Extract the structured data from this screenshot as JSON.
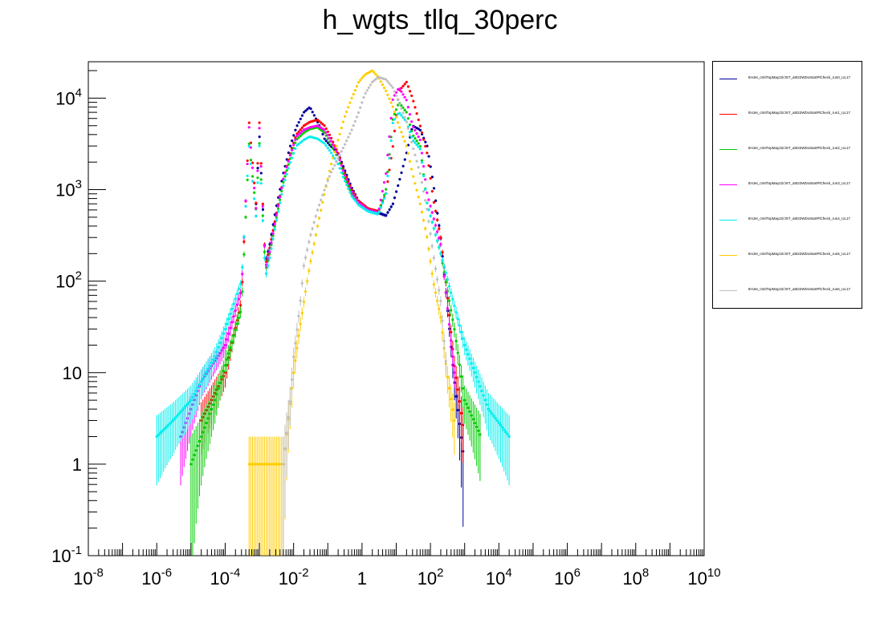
{
  "title": "h_wgts_tllq_30perc",
  "chart_data": {
    "type": "scatter",
    "title": "h_wgts_tllq_30perc",
    "xlabel": "",
    "ylabel": "",
    "xscale": "log",
    "yscale": "log",
    "xlim": [
      1e-08,
      10000000000.0
    ],
    "ylim": [
      0.1,
      25000
    ],
    "x_ticks": [
      "10^-8",
      "10^-6",
      "10^-4",
      "10^-2",
      "1",
      "10^2",
      "10^4",
      "10^6",
      "10^8",
      "10^10"
    ],
    "y_ticks": [
      "10^-1",
      "1",
      "10",
      "10^2",
      "10^3",
      "10^4"
    ],
    "grid": false,
    "legend_position": "right",
    "series": [
      {
        "name": "ttHJet_ctmlTopMay22/JST_at022WDxStartPlCheck_run0_UL17",
        "color": "#000099",
        "x": [
          0.0008,
          0.001,
          0.0015,
          0.002,
          0.003,
          0.005,
          0.008,
          0.012,
          0.02,
          0.03,
          0.04,
          0.06,
          0.08,
          0.12,
          0.2,
          0.3,
          0.5,
          0.8,
          1.5,
          3,
          5,
          8,
          12,
          20,
          30,
          50,
          80,
          120,
          200,
          300,
          500,
          1000
        ],
        "y": [
          700,
          4000,
          160,
          250,
          600,
          1500,
          3000,
          4800,
          7000,
          8000,
          6500,
          4800,
          3600,
          3000,
          2500,
          1700,
          1050,
          750,
          620,
          560,
          520,
          700,
          1200,
          2500,
          5000,
          4500,
          3000,
          1200,
          300,
          60,
          8,
          1
        ]
      },
      {
        "name": "ttHJet_ctmlTopMay22/JST_at022WDxStartPlCheck_run1_UL17",
        "color": "#ff0000",
        "x": [
          2e-05,
          0.0001,
          0.0003,
          0.0005,
          0.0008,
          0.001,
          0.0015,
          0.002,
          0.003,
          0.005,
          0.008,
          0.012,
          0.02,
          0.03,
          0.05,
          0.08,
          0.12,
          0.2,
          0.3,
          0.5,
          0.8,
          1.5,
          3,
          5,
          8,
          12,
          20,
          30,
          50,
          80,
          120,
          200,
          300,
          500,
          1000
        ],
        "y": [
          3,
          10,
          60,
          5500,
          700,
          5500,
          150,
          230,
          500,
          1300,
          2500,
          4000,
          5000,
          5500,
          5800,
          5000,
          3800,
          2500,
          1600,
          1000,
          750,
          620,
          580,
          900,
          3000,
          12000,
          15000,
          10000,
          5000,
          2500,
          800,
          300,
          80,
          12,
          2
        ]
      },
      {
        "name": "ttHJet_ctmlTopMay22/JST_at022WDxStartPlCheck_run2_UL17",
        "color": "#00cc00",
        "x": [
          1e-05,
          5e-05,
          0.0001,
          0.0003,
          0.0005,
          0.0008,
          0.001,
          0.0015,
          0.002,
          0.003,
          0.005,
          0.008,
          0.012,
          0.02,
          0.03,
          0.05,
          0.08,
          0.12,
          0.2,
          0.3,
          0.5,
          0.8,
          1.5,
          3,
          5,
          8,
          12,
          20,
          30,
          50,
          80,
          200,
          500,
          1000,
          3000
        ],
        "y": [
          1,
          5,
          12,
          50,
          3200,
          600,
          3200,
          130,
          200,
          450,
          1200,
          2200,
          3500,
          4200,
          4600,
          4800,
          4200,
          3200,
          2200,
          1400,
          900,
          700,
          600,
          540,
          1000,
          6000,
          9000,
          7000,
          4000,
          3000,
          700,
          200,
          30,
          5,
          2
        ]
      },
      {
        "name": "ttHJet_ctmlTopMay22/JST_at022WDxStartPlCheck_run3_UL17",
        "color": "#ff00ff",
        "x": [
          5e-06,
          2e-05,
          0.0001,
          0.0003,
          0.0005,
          0.0008,
          0.001,
          0.0015,
          0.002,
          0.003,
          0.005,
          0.008,
          0.012,
          0.02,
          0.03,
          0.05,
          0.08,
          0.12,
          0.2,
          0.3,
          0.5,
          0.8,
          1.5,
          3,
          5,
          8,
          12,
          20,
          30,
          50,
          80,
          200,
          500
        ],
        "y": [
          2,
          8,
          20,
          80,
          4800,
          600,
          4800,
          140,
          210,
          480,
          1300,
          2400,
          3800,
          4500,
          4800,
          5000,
          4500,
          3500,
          2400,
          1500,
          950,
          720,
          600,
          560,
          1500,
          10000,
          13000,
          9500,
          5000,
          3500,
          900,
          250,
          10
        ]
      },
      {
        "name": "ttHJet_ctmlTopMay22/JST_at022WDxStartPlCheck_run4_UL17",
        "color": "#00eeee",
        "x": [
          1e-06,
          3e-06,
          1e-05,
          5e-05,
          0.0001,
          0.0003,
          0.0005,
          0.0008,
          0.001,
          0.0015,
          0.002,
          0.003,
          0.005,
          0.008,
          0.012,
          0.02,
          0.03,
          0.05,
          0.08,
          0.12,
          0.2,
          0.3,
          0.5,
          0.8,
          1.5,
          3,
          5,
          8,
          12,
          20,
          30,
          50,
          80,
          200,
          1000,
          5000,
          20000
        ],
        "y": [
          2,
          3,
          5,
          15,
          30,
          100,
          3000,
          500,
          3000,
          110,
          180,
          420,
          1100,
          2000,
          3000,
          3500,
          3800,
          3600,
          3200,
          2600,
          1900,
          1300,
          850,
          680,
          580,
          540,
          900,
          5500,
          7000,
          5500,
          3500,
          2800,
          700,
          200,
          20,
          4,
          2
        ]
      },
      {
        "name": "ttHJet_ctmlTopMay22/JST_at022WDxStartPlCheck_run5_UL17",
        "color": "#ffcc00",
        "x": [
          0.0005,
          0.005,
          0.007,
          0.01,
          0.015,
          0.02,
          0.03,
          0.05,
          0.08,
          0.12,
          0.2,
          0.3,
          0.5,
          0.8,
          1.2,
          2,
          3,
          5,
          8,
          12,
          20,
          30,
          50,
          80,
          120,
          200,
          300,
          500
        ],
        "y": [
          1,
          1,
          3,
          10,
          30,
          60,
          150,
          400,
          900,
          1800,
          3500,
          6000,
          10000,
          15000,
          18000,
          20000,
          17000,
          12000,
          8000,
          5000,
          3000,
          1500,
          700,
          300,
          100,
          40,
          10,
          3
        ]
      },
      {
        "name": "ttHJet_ctmlTopMay22/JST_at022WDxStartPlCheck_run6_UL17",
        "color": "#c0c0c0",
        "x": [
          0.005,
          0.008,
          0.01,
          0.015,
          0.02,
          0.03,
          0.05,
          0.08,
          0.12,
          0.2,
          0.3,
          0.5,
          0.8,
          1.2,
          2,
          3,
          5,
          8,
          12,
          20,
          30,
          50,
          80,
          120,
          200,
          300
        ],
        "y": [
          1,
          5,
          15,
          50,
          150,
          300,
          600,
          1000,
          1500,
          2200,
          3000,
          4500,
          7000,
          11000,
          15000,
          17000,
          16000,
          13000,
          9000,
          5500,
          3000,
          1500,
          600,
          200,
          60,
          10
        ]
      }
    ]
  },
  "legend": {
    "entries": [
      {
        "label": "ttHJet_ctmlTopMay22/JST_at022WDxStartPlCheck_run0_UL17",
        "color": "#000099"
      },
      {
        "label": "ttHJet_ctmlTopMay22/JST_at022WDxStartPlCheck_run1_UL17",
        "color": "#ff0000"
      },
      {
        "label": "ttHJet_ctmlTopMay22/JST_at022WDxStartPlCheck_run2_UL17",
        "color": "#00cc00"
      },
      {
        "label": "ttHJet_ctmlTopMay22/JST_at022WDxStartPlCheck_run3_UL17",
        "color": "#ff00ff"
      },
      {
        "label": "ttHJet_ctmlTopMay22/JST_at022WDxStartPlCheck_run4_UL17",
        "color": "#00eeee"
      },
      {
        "label": "ttHJet_ctmlTopMay22/JST_at022WDxStartPlCheck_run5_UL17",
        "color": "#ffcc00"
      },
      {
        "label": "ttHJet_ctmlTopMay22/JST_at022WDxStartPlCheck_run6_UL17",
        "color": "#c0c0c0"
      }
    ]
  }
}
